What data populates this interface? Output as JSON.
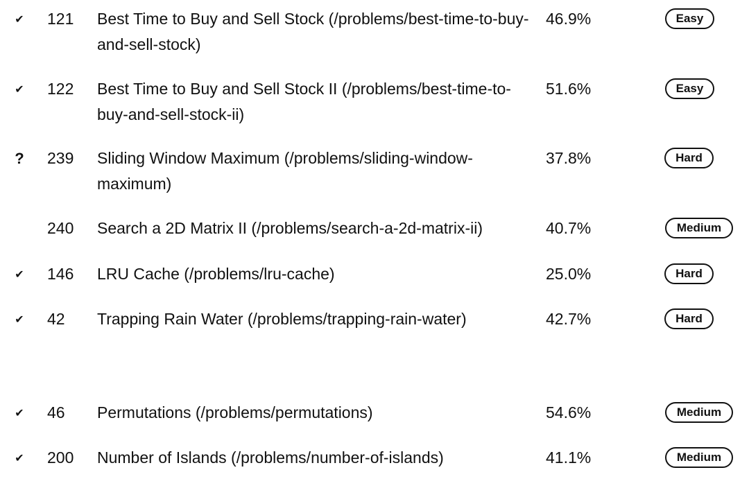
{
  "problems": [
    {
      "status": "solved",
      "status_glyph": "✔",
      "number": "121",
      "title": "Best Time to Buy and Sell Stock (/problems/best-time-to-buy-and-sell-stock)",
      "acceptance": "46.9%",
      "difficulty": "Easy"
    },
    {
      "status": "solved",
      "status_glyph": "✔",
      "number": "122",
      "title": "Best Time to Buy and Sell Stock II (/problems/best-time-to-buy-and-sell-stock-ii)",
      "acceptance": "51.6%",
      "difficulty": "Easy"
    },
    {
      "status": "attempted",
      "status_glyph": "?",
      "number": "239",
      "title": "Sliding Window Maximum (/problems/sliding-window-maximum)",
      "acceptance": "37.8%",
      "difficulty": "Hard"
    },
    {
      "status": "none",
      "status_glyph": "",
      "number": "240",
      "title": "Search a 2D Matrix II (/problems/search-a-2d-matrix-ii)",
      "acceptance": "40.7%",
      "difficulty": "Medium"
    },
    {
      "status": "solved",
      "status_glyph": "✔",
      "number": "146",
      "title": "LRU Cache (/problems/lru-cache)",
      "acceptance": "25.0%",
      "difficulty": "Hard"
    },
    {
      "status": "solved",
      "status_glyph": "✔",
      "number": "42",
      "title": "Trapping Rain Water (/problems/trapping-rain-water)",
      "acceptance": "42.7%",
      "difficulty": "Hard"
    },
    {
      "status": "solved",
      "status_glyph": "✔",
      "number": "46",
      "title": "Permutations (/problems/permutations)",
      "acceptance": "54.6%",
      "difficulty": "Medium"
    },
    {
      "status": "solved",
      "status_glyph": "✔",
      "number": "200",
      "title": "Number of Islands (/problems/number-of-islands)",
      "acceptance": "41.1%",
      "difficulty": "Medium"
    }
  ]
}
